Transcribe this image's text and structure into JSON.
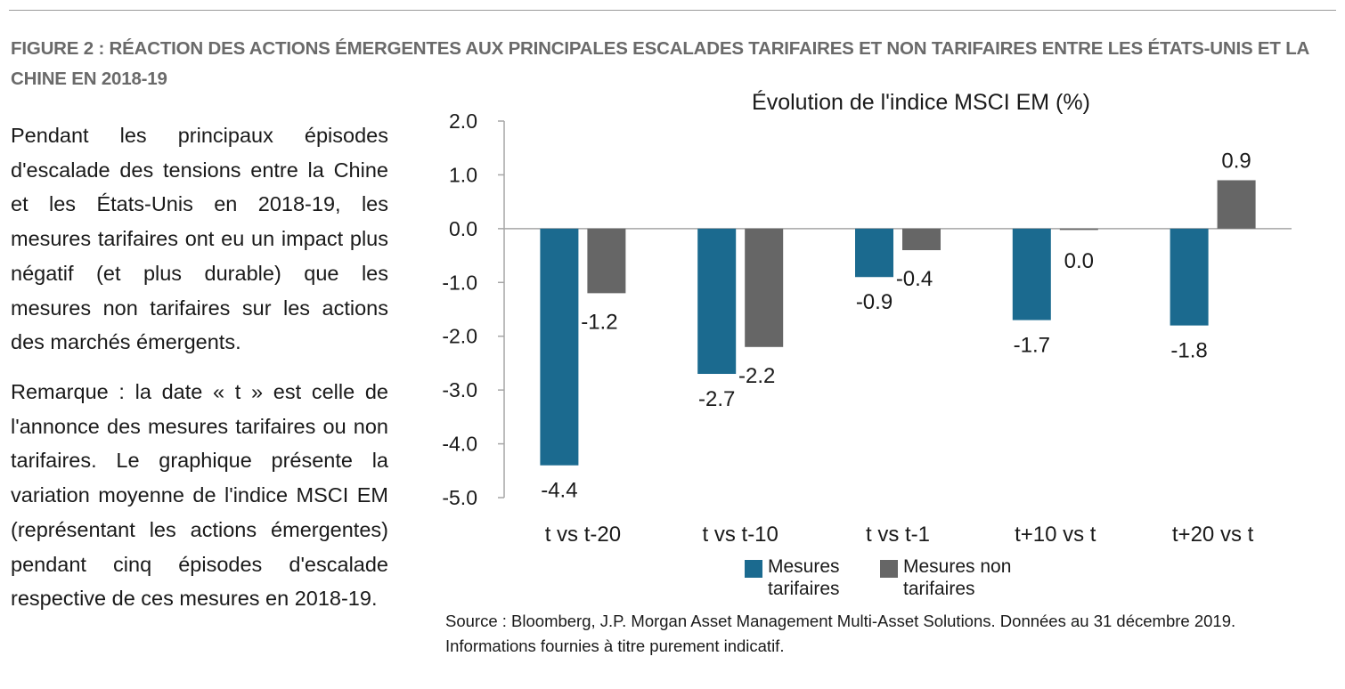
{
  "figure_title": "FIGURE 2 : RÉACTION DES ACTIONS ÉMERGENTES AUX PRINCIPALES ESCALADES TARIFAIRES ET NON TARIFAIRES ENTRE LES ÉTATS-UNIS ET LA CHINE EN 2018-19",
  "body": {
    "paragraph_1": "Pendant les principaux épisodes d'escalade des tensions entre la Chine et les États-Unis en 2018-19, les mesures tarifaires ont eu un impact plus négatif (et plus durable) que les mesures non tarifaires sur les actions des marchés émergents.",
    "paragraph_2": "Remarque : la date « t » est celle de l'annonce des mesures tarifaires ou non tarifaires. Le graphique présente la variation moyenne de l'indice MSCI EM (représentant les actions émergentes) pendant cinq épisodes d'escalade respective de ces mesures en 2018-19."
  },
  "source_note": {
    "line_1": "Source : Bloomberg, J.P. Morgan Asset Management Multi-Asset Solutions. Données au 31 décembre 2019.",
    "line_2": "Informations fournies à titre purement indicatif."
  },
  "colors": {
    "tarifaires": "#1b6a8f",
    "non_tarifaires": "#666666",
    "axis": "#a6a6a6",
    "title_gray": "#6a6a6a"
  },
  "chart_data": {
    "type": "bar",
    "title": "Évolution de l'indice MSCI EM (%)",
    "categories": [
      "t vs t-20",
      "t vs t-10",
      "t vs t-1",
      "t+10 vs t",
      "t+20 vs t"
    ],
    "series": [
      {
        "name": "Mesures tarifaires",
        "values": [
          -4.4,
          -2.7,
          -0.9,
          -1.7,
          -1.8
        ],
        "labels": [
          "-4.4",
          "-2.7",
          "-0.9",
          "-1.7",
          "-1.8"
        ]
      },
      {
        "name": "Mesures non tarifaires",
        "values": [
          -1.2,
          -2.2,
          -0.4,
          0.0,
          0.9
        ],
        "labels": [
          "-1.2",
          "-2.2",
          "-0.4",
          "0.0",
          "0.9"
        ]
      }
    ],
    "yticks": [
      "2.0",
      "1.0",
      "0.0",
      "-1.0",
      "-2.0",
      "-3.0",
      "-4.0",
      "-5.0"
    ],
    "ylim": [
      -5,
      2
    ],
    "grid": false,
    "legend_position": "bottom"
  }
}
